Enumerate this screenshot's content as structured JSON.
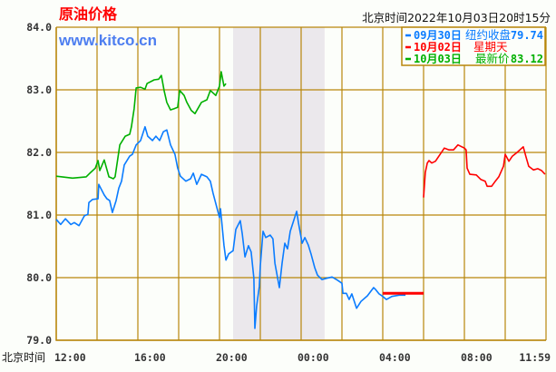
{
  "header": {
    "title": "原油价格",
    "brand": "www.kitco.cn",
    "timestamp": "北京时间2022年10月03日20时15分"
  },
  "legend": [
    {
      "date": "09月30日",
      "label": "纽约收盘",
      "value": "79.74",
      "color": "#0a7cff"
    },
    {
      "date": "10月02日",
      "label": "星期天",
      "value": "",
      "color": "#ff0000"
    },
    {
      "date": "10月03日",
      "label": "最新价",
      "value": "83.12",
      "color": "#00b000"
    }
  ],
  "chart_data": {
    "type": "line",
    "title": "原油价格",
    "xlabel": "北京时间",
    "ylabel": "",
    "ylim": [
      79.0,
      84.0
    ],
    "xlim": [
      "12:00",
      "11:59"
    ],
    "grid": true,
    "legend_position": "top-right",
    "y_ticks": [
      "84.0",
      "83.0",
      "82.0",
      "81.0",
      "80.0",
      "79.0"
    ],
    "x_ticks": [
      "12:00",
      "16:00",
      "20:00",
      "00:00",
      "04:00",
      "08:00",
      "11:59"
    ],
    "shaded_range": [
      "20:40",
      "01:09"
    ],
    "reference_line": {
      "value": 79.75,
      "from": "04:00",
      "to": "06:00",
      "color": "#ff0000"
    },
    "series": [
      {
        "name": "09月30日",
        "color": "#0a7cff",
        "points": [
          [
            "12:00",
            80.93
          ],
          [
            "12:13",
            80.85
          ],
          [
            "12:27",
            80.94
          ],
          [
            "12:43",
            80.85
          ],
          [
            "12:53",
            80.88
          ],
          [
            "13:07",
            80.83
          ],
          [
            "13:23",
            80.99
          ],
          [
            "13:33",
            81.01
          ],
          [
            "13:36",
            81.2
          ],
          [
            "13:47",
            81.25
          ],
          [
            "14:03",
            81.26
          ],
          [
            "14:05",
            81.49
          ],
          [
            "14:21",
            81.32
          ],
          [
            "14:29",
            81.26
          ],
          [
            "14:37",
            81.23
          ],
          [
            "14:45",
            81.04
          ],
          [
            "14:56",
            81.23
          ],
          [
            "15:04",
            81.43
          ],
          [
            "15:12",
            81.54
          ],
          [
            "15:20",
            81.8
          ],
          [
            "15:36",
            81.94
          ],
          [
            "15:44",
            81.97
          ],
          [
            "15:55",
            82.12
          ],
          [
            "16:08",
            82.19
          ],
          [
            "16:21",
            82.41
          ],
          [
            "16:29",
            82.26
          ],
          [
            "16:43",
            82.19
          ],
          [
            "16:53",
            82.26
          ],
          [
            "17:04",
            82.19
          ],
          [
            "17:15",
            82.33
          ],
          [
            "17:25",
            82.36
          ],
          [
            "17:36",
            82.12
          ],
          [
            "17:49",
            81.97
          ],
          [
            "17:57",
            81.75
          ],
          [
            "18:05",
            81.62
          ],
          [
            "18:21",
            81.54
          ],
          [
            "18:35",
            81.58
          ],
          [
            "18:43",
            81.67
          ],
          [
            "18:53",
            81.49
          ],
          [
            "19:07",
            81.65
          ],
          [
            "19:23",
            81.61
          ],
          [
            "19:33",
            81.54
          ],
          [
            "19:41",
            81.35
          ],
          [
            "20:00",
            80.96
          ],
          [
            "20:03",
            81.1
          ],
          [
            "20:08",
            80.81
          ],
          [
            "20:13",
            80.52
          ],
          [
            "20:19",
            80.28
          ],
          [
            "20:27",
            80.38
          ],
          [
            "20:40",
            80.43
          ],
          [
            "20:48",
            80.77
          ],
          [
            "21:01",
            80.91
          ],
          [
            "21:07",
            80.7
          ],
          [
            "21:15",
            80.33
          ],
          [
            "21:25",
            80.51
          ],
          [
            "21:33",
            80.41
          ],
          [
            "21:41",
            79.99
          ],
          [
            "21:44",
            79.19
          ],
          [
            "21:49",
            79.54
          ],
          [
            "21:57",
            79.86
          ],
          [
            "22:00",
            80.19
          ],
          [
            "22:08",
            80.74
          ],
          [
            "22:16",
            80.64
          ],
          [
            "22:29",
            80.68
          ],
          [
            "22:37",
            80.62
          ],
          [
            "22:43",
            80.23
          ],
          [
            "22:56",
            79.84
          ],
          [
            "23:04",
            80.23
          ],
          [
            "23:12",
            80.55
          ],
          [
            "23:20",
            80.46
          ],
          [
            "23:28",
            80.74
          ],
          [
            "23:47",
            81.06
          ],
          [
            "23:52",
            80.88
          ],
          [
            "00:03",
            80.55
          ],
          [
            "00:11",
            80.64
          ],
          [
            "00:21",
            80.52
          ],
          [
            "00:29",
            80.38
          ],
          [
            "00:40",
            80.16
          ],
          [
            "00:48",
            80.04
          ],
          [
            "01:01",
            79.97
          ],
          [
            "01:15",
            79.99
          ],
          [
            "01:31",
            80.01
          ],
          [
            "01:47",
            79.96
          ],
          [
            "02:00",
            79.91
          ],
          [
            "02:03",
            79.75
          ],
          [
            "02:13",
            79.75
          ],
          [
            "02:21",
            79.65
          ],
          [
            "02:29",
            79.74
          ],
          [
            "02:43",
            79.51
          ],
          [
            "02:56",
            79.62
          ],
          [
            "03:15",
            79.71
          ],
          [
            "03:33",
            79.84
          ],
          [
            "03:39",
            79.81
          ],
          [
            "03:49",
            79.74
          ],
          [
            "04:00",
            79.7
          ],
          [
            "04:11",
            79.65
          ],
          [
            "04:27",
            79.7
          ],
          [
            "04:48",
            79.72
          ],
          [
            "05:07",
            79.72
          ]
        ]
      },
      {
        "name": "10月02日",
        "color": "#ff0000",
        "points": [
          [
            "06:00",
            81.28
          ],
          [
            "06:05",
            81.68
          ],
          [
            "06:11",
            81.83
          ],
          [
            "06:16",
            81.87
          ],
          [
            "06:24",
            81.83
          ],
          [
            "06:35",
            81.86
          ],
          [
            "06:45",
            81.94
          ],
          [
            "07:01",
            82.07
          ],
          [
            "07:15",
            82.04
          ],
          [
            "07:28",
            82.04
          ],
          [
            "07:41",
            82.12
          ],
          [
            "08:00",
            82.07
          ],
          [
            "08:05",
            82.04
          ],
          [
            "08:08",
            81.75
          ],
          [
            "08:16",
            81.65
          ],
          [
            "08:35",
            81.64
          ],
          [
            "08:48",
            81.57
          ],
          [
            "09:01",
            81.54
          ],
          [
            "09:07",
            81.46
          ],
          [
            "09:20",
            81.46
          ],
          [
            "09:31",
            81.54
          ],
          [
            "09:41",
            81.61
          ],
          [
            "09:55",
            81.78
          ],
          [
            "10:00",
            81.97
          ],
          [
            "10:11",
            81.86
          ],
          [
            "10:21",
            81.94
          ],
          [
            "10:35",
            82.0
          ],
          [
            "10:53",
            82.09
          ],
          [
            "11:01",
            81.93
          ],
          [
            "11:09",
            81.78
          ],
          [
            "11:23",
            81.72
          ],
          [
            "11:36",
            81.74
          ],
          [
            "11:47",
            81.71
          ],
          [
            "11:57",
            81.65
          ]
        ]
      },
      {
        "name": "10月03日",
        "color": "#00b000",
        "points": [
          [
            "12:00",
            81.62
          ],
          [
            "12:48",
            81.59
          ],
          [
            "13:28",
            81.61
          ],
          [
            "13:41",
            81.68
          ],
          [
            "13:55",
            81.75
          ],
          [
            "14:03",
            81.87
          ],
          [
            "14:08",
            81.71
          ],
          [
            "14:21",
            81.88
          ],
          [
            "14:35",
            81.61
          ],
          [
            "14:48",
            81.58
          ],
          [
            "14:53",
            81.61
          ],
          [
            "15:07",
            82.12
          ],
          [
            "15:23",
            82.26
          ],
          [
            "15:36",
            82.29
          ],
          [
            "15:41",
            82.41
          ],
          [
            "15:49",
            82.7
          ],
          [
            "15:55",
            83.03
          ],
          [
            "16:08",
            83.04
          ],
          [
            "16:21",
            83.01
          ],
          [
            "16:27",
            83.1
          ],
          [
            "16:48",
            83.16
          ],
          [
            "17:01",
            83.17
          ],
          [
            "17:09",
            83.23
          ],
          [
            "17:17",
            82.99
          ],
          [
            "17:25",
            82.8
          ],
          [
            "17:36",
            82.68
          ],
          [
            "17:47",
            82.7
          ],
          [
            "17:57",
            82.72
          ],
          [
            "18:03",
            82.99
          ],
          [
            "18:16",
            82.91
          ],
          [
            "18:24",
            82.8
          ],
          [
            "18:37",
            82.67
          ],
          [
            "18:48",
            82.62
          ],
          [
            "19:07",
            82.8
          ],
          [
            "19:23",
            82.84
          ],
          [
            "19:33",
            82.99
          ],
          [
            "19:49",
            82.91
          ],
          [
            "20:00",
            83.06
          ],
          [
            "20:05",
            83.29
          ],
          [
            "20:13",
            83.06
          ],
          [
            "20:19",
            83.1
          ]
        ]
      }
    ]
  },
  "colors": {
    "grid": "#b8860b",
    "shade": "#ebe8ec",
    "background": "#fcfefa"
  }
}
